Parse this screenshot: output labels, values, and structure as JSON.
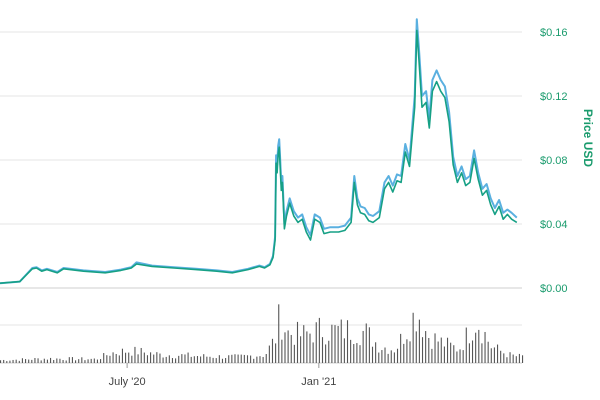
{
  "chart_data": {
    "type": "line",
    "y_axis": {
      "label": "Price USD",
      "ticks": [
        "$0.00",
        "$0.04",
        "$0.08",
        "$0.12",
        "$0.16"
      ],
      "tick_values": [
        0,
        0.04,
        0.08,
        0.12,
        0.16
      ],
      "ylim": [
        0,
        0.17
      ],
      "position": "right",
      "grid": true
    },
    "x_axis": {
      "ticks": [
        "July '20",
        "Jan '21"
      ],
      "tick_dates": [
        "2020-07-01",
        "2021-01-01"
      ],
      "range": [
        "2020-03-01",
        "2021-07-15"
      ]
    },
    "series": [
      {
        "color": "#5ab0e0",
        "points": [
          [
            "2020-03-01",
            0.003
          ],
          [
            "2020-03-20",
            0.004
          ],
          [
            "2020-04-01",
            0.0125
          ],
          [
            "2020-04-05",
            0.013
          ],
          [
            "2020-04-10",
            0.011
          ],
          [
            "2020-04-15",
            0.012
          ],
          [
            "2020-04-25",
            0.01
          ],
          [
            "2020-05-01",
            0.0125
          ],
          [
            "2020-05-20",
            0.011
          ],
          [
            "2020-06-10",
            0.01
          ],
          [
            "2020-06-25",
            0.0115
          ],
          [
            "2020-07-05",
            0.013
          ],
          [
            "2020-07-10",
            0.016
          ],
          [
            "2020-07-25",
            0.014
          ],
          [
            "2020-08-15",
            0.013
          ],
          [
            "2020-09-05",
            0.012
          ],
          [
            "2020-09-25",
            0.011
          ],
          [
            "2020-10-10",
            0.01
          ],
          [
            "2020-10-25",
            0.012
          ],
          [
            "2020-11-05",
            0.014
          ],
          [
            "2020-11-10",
            0.013
          ],
          [
            "2020-11-15",
            0.015
          ],
          [
            "2020-11-18",
            0.02
          ],
          [
            "2020-11-20",
            0.032
          ],
          [
            "2020-11-21",
            0.083
          ],
          [
            "2020-11-22",
            0.077
          ],
          [
            "2020-11-23",
            0.089
          ],
          [
            "2020-11-24",
            0.093
          ],
          [
            "2020-11-25",
            0.079
          ],
          [
            "2020-11-26",
            0.065
          ],
          [
            "2020-11-27",
            0.07
          ],
          [
            "2020-11-29",
            0.04
          ],
          [
            "2020-12-01",
            0.048
          ],
          [
            "2020-12-04",
            0.056
          ],
          [
            "2020-12-08",
            0.048
          ],
          [
            "2020-12-12",
            0.044
          ],
          [
            "2020-12-16",
            0.046
          ],
          [
            "2020-12-20",
            0.038
          ],
          [
            "2020-12-24",
            0.033
          ],
          [
            "2020-12-28",
            0.046
          ],
          [
            "2021-01-02",
            0.044
          ],
          [
            "2021-01-06",
            0.037
          ],
          [
            "2021-01-12",
            0.038
          ],
          [
            "2021-01-20",
            0.038
          ],
          [
            "2021-01-26",
            0.039
          ],
          [
            "2021-02-01",
            0.044
          ],
          [
            "2021-02-04",
            0.07
          ],
          [
            "2021-02-07",
            0.056
          ],
          [
            "2021-02-10",
            0.051
          ],
          [
            "2021-02-14",
            0.05
          ],
          [
            "2021-02-18",
            0.046
          ],
          [
            "2021-02-22",
            0.045
          ],
          [
            "2021-02-28",
            0.048
          ],
          [
            "2021-03-05",
            0.066
          ],
          [
            "2021-03-09",
            0.07
          ],
          [
            "2021-03-13",
            0.064
          ],
          [
            "2021-03-17",
            0.071
          ],
          [
            "2021-03-21",
            0.07
          ],
          [
            "2021-03-25",
            0.09
          ],
          [
            "2021-03-29",
            0.08
          ],
          [
            "2021-04-03",
            0.12
          ],
          [
            "2021-04-05",
            0.168
          ],
          [
            "2021-04-07",
            0.15
          ],
          [
            "2021-04-10",
            0.12
          ],
          [
            "2021-04-14",
            0.123
          ],
          [
            "2021-04-17",
            0.106
          ],
          [
            "2021-04-20",
            0.13
          ],
          [
            "2021-04-24",
            0.136
          ],
          [
            "2021-04-28",
            0.13
          ],
          [
            "2021-05-02",
            0.126
          ],
          [
            "2021-05-06",
            0.11
          ],
          [
            "2021-05-10",
            0.082
          ],
          [
            "2021-05-14",
            0.07
          ],
          [
            "2021-05-18",
            0.076
          ],
          [
            "2021-05-22",
            0.068
          ],
          [
            "2021-05-26",
            0.07
          ],
          [
            "2021-05-30",
            0.086
          ],
          [
            "2021-06-03",
            0.072
          ],
          [
            "2021-06-07",
            0.062
          ],
          [
            "2021-06-11",
            0.065
          ],
          [
            "2021-06-15",
            0.056
          ],
          [
            "2021-06-19",
            0.05
          ],
          [
            "2021-06-23",
            0.055
          ],
          [
            "2021-06-27",
            0.047
          ],
          [
            "2021-07-01",
            0.049
          ],
          [
            "2021-07-05",
            0.047
          ],
          [
            "2021-07-10",
            0.044
          ]
        ]
      },
      {
        "color": "#16a085",
        "points": [
          [
            "2020-03-01",
            0.003
          ],
          [
            "2020-03-20",
            0.004
          ],
          [
            "2020-04-01",
            0.012
          ],
          [
            "2020-04-05",
            0.0125
          ],
          [
            "2020-04-10",
            0.0105
          ],
          [
            "2020-04-15",
            0.0115
          ],
          [
            "2020-04-25",
            0.0095
          ],
          [
            "2020-05-01",
            0.012
          ],
          [
            "2020-05-20",
            0.0105
          ],
          [
            "2020-06-10",
            0.0095
          ],
          [
            "2020-06-25",
            0.011
          ],
          [
            "2020-07-05",
            0.0125
          ],
          [
            "2020-07-10",
            0.015
          ],
          [
            "2020-07-25",
            0.0135
          ],
          [
            "2020-08-15",
            0.0125
          ],
          [
            "2020-09-05",
            0.0115
          ],
          [
            "2020-09-25",
            0.0105
          ],
          [
            "2020-10-10",
            0.0095
          ],
          [
            "2020-10-25",
            0.0115
          ],
          [
            "2020-11-05",
            0.0135
          ],
          [
            "2020-11-10",
            0.0125
          ],
          [
            "2020-11-15",
            0.0145
          ],
          [
            "2020-11-18",
            0.019
          ],
          [
            "2020-11-20",
            0.03
          ],
          [
            "2020-11-21",
            0.078
          ],
          [
            "2020-11-22",
            0.072
          ],
          [
            "2020-11-23",
            0.084
          ],
          [
            "2020-11-24",
            0.088
          ],
          [
            "2020-11-25",
            0.074
          ],
          [
            "2020-11-26",
            0.061
          ],
          [
            "2020-11-27",
            0.066
          ],
          [
            "2020-11-29",
            0.037
          ],
          [
            "2020-12-01",
            0.045
          ],
          [
            "2020-12-04",
            0.053
          ],
          [
            "2020-12-08",
            0.045
          ],
          [
            "2020-12-12",
            0.041
          ],
          [
            "2020-12-16",
            0.043
          ],
          [
            "2020-12-20",
            0.035
          ],
          [
            "2020-12-24",
            0.03
          ],
          [
            "2020-12-28",
            0.043
          ],
          [
            "2021-01-02",
            0.041
          ],
          [
            "2021-01-06",
            0.034
          ],
          [
            "2021-01-12",
            0.035
          ],
          [
            "2021-01-20",
            0.035
          ],
          [
            "2021-01-26",
            0.036
          ],
          [
            "2021-02-01",
            0.041
          ],
          [
            "2021-02-04",
            0.066
          ],
          [
            "2021-02-07",
            0.052
          ],
          [
            "2021-02-10",
            0.047
          ],
          [
            "2021-02-14",
            0.046
          ],
          [
            "2021-02-18",
            0.042
          ],
          [
            "2021-02-22",
            0.041
          ],
          [
            "2021-02-28",
            0.044
          ],
          [
            "2021-03-05",
            0.062
          ],
          [
            "2021-03-09",
            0.066
          ],
          [
            "2021-03-13",
            0.06
          ],
          [
            "2021-03-17",
            0.067
          ],
          [
            "2021-03-21",
            0.066
          ],
          [
            "2021-03-25",
            0.085
          ],
          [
            "2021-03-29",
            0.076
          ],
          [
            "2021-04-03",
            0.113
          ],
          [
            "2021-04-05",
            0.161
          ],
          [
            "2021-04-07",
            0.143
          ],
          [
            "2021-04-10",
            0.113
          ],
          [
            "2021-04-14",
            0.116
          ],
          [
            "2021-04-17",
            0.1
          ],
          [
            "2021-04-20",
            0.123
          ],
          [
            "2021-04-24",
            0.129
          ],
          [
            "2021-04-28",
            0.123
          ],
          [
            "2021-05-02",
            0.119
          ],
          [
            "2021-05-06",
            0.104
          ],
          [
            "2021-05-10",
            0.077
          ],
          [
            "2021-05-14",
            0.066
          ],
          [
            "2021-05-18",
            0.072
          ],
          [
            "2021-05-22",
            0.064
          ],
          [
            "2021-05-26",
            0.066
          ],
          [
            "2021-05-30",
            0.081
          ],
          [
            "2021-06-03",
            0.068
          ],
          [
            "2021-06-07",
            0.058
          ],
          [
            "2021-06-11",
            0.061
          ],
          [
            "2021-06-15",
            0.052
          ],
          [
            "2021-06-19",
            0.046
          ],
          [
            "2021-06-23",
            0.051
          ],
          [
            "2021-06-27",
            0.043
          ],
          [
            "2021-07-01",
            0.046
          ],
          [
            "2021-07-05",
            0.043
          ],
          [
            "2021-07-10",
            0.041
          ]
        ]
      }
    ],
    "volume": {
      "type": "bar",
      "color": "#555555",
      "bars": [
        [
          "2020-03-01",
          0.05
        ],
        [
          "2020-04-15",
          0.08
        ],
        [
          "2020-06-01",
          0.07
        ],
        [
          "2020-06-15",
          0.18
        ],
        [
          "2020-07-01",
          0.22
        ],
        [
          "2020-07-15",
          0.2
        ],
        [
          "2020-08-01",
          0.15
        ],
        [
          "2020-08-20",
          0.14
        ],
        [
          "2020-09-15",
          0.12
        ],
        [
          "2020-10-15",
          0.11
        ],
        [
          "2020-11-10",
          0.15
        ],
        [
          "2020-11-20",
          0.45
        ],
        [
          "2020-11-24",
          0.85
        ],
        [
          "2020-12-01",
          0.55
        ],
        [
          "2020-12-15",
          0.5
        ],
        [
          "2021-01-01",
          0.6
        ],
        [
          "2021-01-15",
          0.58
        ],
        [
          "2021-02-01",
          0.6
        ],
        [
          "2021-02-15",
          0.55
        ],
        [
          "2021-02-28",
          0.3
        ],
        [
          "2021-03-15",
          0.25
        ],
        [
          "2021-04-05",
          0.95
        ],
        [
          "2021-04-15",
          0.5
        ],
        [
          "2021-05-01",
          0.35
        ],
        [
          "2021-05-15",
          0.25
        ],
        [
          "2021-06-01",
          0.8
        ],
        [
          "2021-06-15",
          0.3
        ],
        [
          "2021-07-01",
          0.15
        ],
        [
          "2021-07-10",
          0.12
        ]
      ]
    }
  }
}
